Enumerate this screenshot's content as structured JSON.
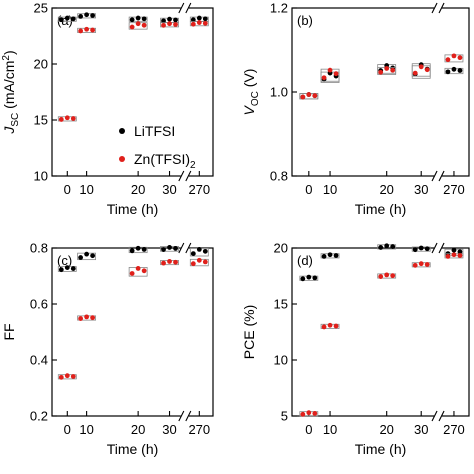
{
  "legend": [
    {
      "label": "LiTFSI",
      "color": "#000000"
    },
    {
      "label": "Zn(TFSI)",
      "sub": "2",
      "color": "#e0201b"
    }
  ],
  "x_ticks": [
    "0",
    "10",
    "20",
    "30",
    "270"
  ],
  "xlabel": "Time (h)",
  "chart_data": [
    {
      "type": "scatter",
      "panel": "(a)",
      "ylabel": {
        "main": "J",
        "sub": "SC",
        "rest": " (mA/cm",
        "sup": "2",
        "end": ")"
      },
      "ylim": [
        10,
        25
      ],
      "yticks": [
        "10",
        "15",
        "20",
        "25"
      ],
      "series": [
        {
          "name": "LiTFSI",
          "color": "#000000",
          "points": [
            {
              "t": "0",
              "y": 24.0,
              "n": 3,
              "spread": 0.1
            },
            {
              "t": "5",
              "y": 24.3,
              "n": 3,
              "spread": 0.1
            },
            {
              "t": "20",
              "y": 24.0,
              "n": 3,
              "spread": 0.1
            },
            {
              "t": "30",
              "y": 23.9,
              "n": 3,
              "spread": 0.1
            },
            {
              "t": "270",
              "y": 24.0,
              "n": 3,
              "spread": 0.1
            }
          ]
        },
        {
          "name": "Zn(TFSI)2",
          "color": "#e0201b",
          "points": [
            {
              "t": "0",
              "y": 15.1,
              "n": 3,
              "spread": 0.1
            },
            {
              "t": "5",
              "y": 23.0,
              "n": 3,
              "spread": 0.1
            },
            {
              "t": "20",
              "y": 23.4,
              "n": 3,
              "spread": 0.2
            },
            {
              "t": "30",
              "y": 23.5,
              "n": 3,
              "spread": 0.1
            },
            {
              "t": "270",
              "y": 23.6,
              "n": 3,
              "spread": 0.1
            }
          ]
        }
      ]
    },
    {
      "type": "scatter",
      "panel": "(b)",
      "ylabel": {
        "main": "V",
        "sub": "OC",
        "rest": " (V)",
        "sup": "",
        "end": ""
      },
      "ylim": [
        0.8,
        1.2
      ],
      "yticks": [
        "0.8",
        "1.0",
        "1.2"
      ],
      "series": [
        {
          "name": "LiTFSI",
          "color": "#000000",
          "points": [
            {
              "t": "0",
              "y": 0.99,
              "n": 3,
              "spread": 0.004
            },
            {
              "t": "5",
              "y": 1.035,
              "n": 3,
              "spread": 0.01
            },
            {
              "t": "20",
              "y": 1.055,
              "n": 3,
              "spread": 0.008
            },
            {
              "t": "30",
              "y": 1.05,
              "n": 3,
              "spread": 0.015
            },
            {
              "t": "270",
              "y": 1.05,
              "n": 3,
              "spread": 0.004
            }
          ]
        },
        {
          "name": "Zn(TFSI)2",
          "color": "#e0201b",
          "points": [
            {
              "t": "0",
              "y": 0.99,
              "n": 3,
              "spread": 0.004
            },
            {
              "t": "5",
              "y": 1.04,
              "n": 3,
              "spread": 0.012
            },
            {
              "t": "20",
              "y": 1.05,
              "n": 3,
              "spread": 0.006
            },
            {
              "t": "30",
              "y": 1.05,
              "n": 3,
              "spread": 0.01
            },
            {
              "t": "270",
              "y": 1.08,
              "n": 3,
              "spread": 0.006
            }
          ]
        }
      ]
    },
    {
      "type": "scatter",
      "panel": "(c)",
      "ylabel": {
        "main": "FF",
        "sub": "",
        "rest": "",
        "sup": "",
        "end": ""
      },
      "ylim": [
        0.2,
        0.8
      ],
      "yticks": [
        "0.2",
        "0.4",
        "0.6",
        "0.8"
      ],
      "series": [
        {
          "name": "LiTFSI",
          "color": "#000000",
          "points": [
            {
              "t": "0",
              "y": 0.725,
              "n": 3,
              "spread": 0.005
            },
            {
              "t": "5",
              "y": 0.77,
              "n": 3,
              "spread": 0.008
            },
            {
              "t": "20",
              "y": 0.793,
              "n": 3,
              "spread": 0.006
            },
            {
              "t": "30",
              "y": 0.797,
              "n": 3,
              "spread": 0.005
            },
            {
              "t": "270",
              "y": 0.785,
              "n": 3,
              "spread": 0.01
            }
          ]
        },
        {
          "name": "Zn(TFSI)2",
          "color": "#e0201b",
          "points": [
            {
              "t": "0",
              "y": 0.34,
              "n": 3,
              "spread": 0.004
            },
            {
              "t": "5",
              "y": 0.55,
              "n": 3,
              "spread": 0.004
            },
            {
              "t": "20",
              "y": 0.715,
              "n": 3,
              "spread": 0.012
            },
            {
              "t": "30",
              "y": 0.748,
              "n": 3,
              "spread": 0.004
            },
            {
              "t": "270",
              "y": 0.748,
              "n": 3,
              "spread": 0.008
            }
          ]
        }
      ]
    },
    {
      "type": "scatter",
      "panel": "(d)",
      "ylabel": {
        "main": "PCE (%)",
        "sub": "",
        "rest": "",
        "sup": "",
        "end": ""
      },
      "ylim": [
        5,
        20
      ],
      "yticks": [
        "5",
        "10",
        "15",
        "20"
      ],
      "series": [
        {
          "name": "LiTFSI",
          "color": "#000000",
          "points": [
            {
              "t": "0",
              "y": 17.3,
              "n": 3,
              "spread": 0.1
            },
            {
              "t": "5",
              "y": 19.3,
              "n": 3,
              "spread": 0.1
            },
            {
              "t": "20",
              "y": 20.1,
              "n": 3,
              "spread": 0.1
            },
            {
              "t": "30",
              "y": 19.9,
              "n": 3,
              "spread": 0.1
            },
            {
              "t": "270",
              "y": 19.6,
              "n": 3,
              "spread": 0.2
            }
          ]
        },
        {
          "name": "Zn(TFSI)2",
          "color": "#e0201b",
          "points": [
            {
              "t": "0",
              "y": 5.2,
              "n": 3,
              "spread": 0.1
            },
            {
              "t": "5",
              "y": 13.0,
              "n": 3,
              "spread": 0.1
            },
            {
              "t": "20",
              "y": 17.5,
              "n": 3,
              "spread": 0.1
            },
            {
              "t": "30",
              "y": 18.5,
              "n": 3,
              "spread": 0.1
            },
            {
              "t": "270",
              "y": 19.3,
              "n": 3,
              "spread": 0.1
            }
          ]
        }
      ]
    }
  ]
}
